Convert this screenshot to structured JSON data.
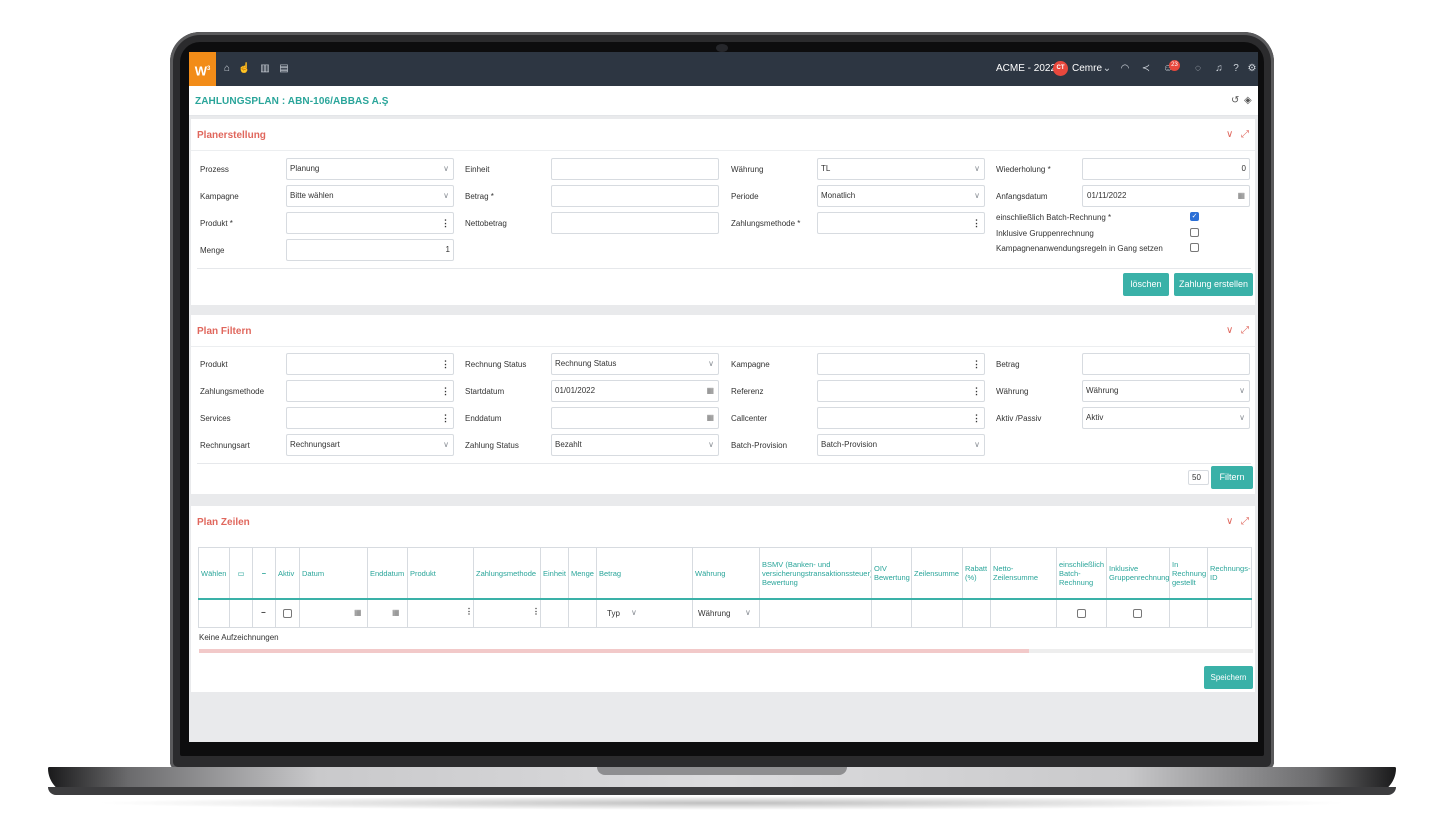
{
  "topbar": {
    "logo": "W",
    "logo_sup": "3",
    "company": "ACME - 2022",
    "avatar_initials": "CT",
    "username": "Cemre",
    "notification_count": "23",
    "icons": [
      "home-icon",
      "hand-icon",
      "chart-icon",
      "calendar-icon",
      "headset-icon",
      "share-icon",
      "bell-badge-icon",
      "chat-icon",
      "bell-icon",
      "help-icon",
      "gear-icon"
    ]
  },
  "title": {
    "text": "ZAHLUNGSPLAN : ABN-106/ABBAS A.Ş"
  },
  "planerstellung": {
    "title": "Planerstellung",
    "prozess_label": "Prozess",
    "prozess_value": "Planung",
    "kampagne_label": "Kampagne",
    "kampagne_value": "Bitte wählen",
    "produkt_label": "Produkt *",
    "produkt_value": "",
    "menge_label": "Menge",
    "menge_value": "1",
    "einheit_label": "Einheit",
    "einheit_value": "",
    "betrag_label": "Betrag *",
    "betrag_value": "",
    "nettobetrag_label": "Nettobetrag",
    "nettobetrag_value": "",
    "waehrung_label": "Währung",
    "waehrung_value": "TL",
    "periode_label": "Periode",
    "periode_value": "Monatlich",
    "zahlungsmethode_label": "Zahlungsmethode *",
    "zahlungsmethode_value": "",
    "wiederholung_label": "Wiederholung *",
    "wiederholung_value": "0",
    "anfangsdatum_label": "Anfangsdatum",
    "anfangsdatum_value": "01/11/2022",
    "batch_label": "einschließlich Batch-Rechnung *",
    "batch_checked": true,
    "gruppen_label": "Inklusive Gruppenrechnung",
    "gruppen_checked": false,
    "kampagnenregeln_label": "Kampagnenanwendungsregeln in Gang setzen",
    "kampagnenregeln_checked": false,
    "loeschen": "löschen",
    "erstellen": "Zahlung erstellen"
  },
  "planfilter": {
    "title": "Plan Filtern",
    "produkt_label": "Produkt",
    "zahlungsmethode_label": "Zahlungsmethode",
    "services_label": "Services",
    "rechnungsart_label": "Rechnungsart",
    "rechnungsart_value": "Rechnungsart",
    "rechnungstatus_label": "Rechnung Status",
    "rechnungstatus_value": "Rechnung Status",
    "startdatum_label": "Startdatum",
    "startdatum_value": "01/01/2022",
    "enddatum_label": "Enddatum",
    "enddatum_value": "",
    "zahlungstatus_label": "Zahlung Status",
    "zahlungstatus_value": "Bezahlt",
    "kampagne_label": "Kampagne",
    "referenz_label": "Referenz",
    "callcenter_label": "Callcenter",
    "batchprovision_label": "Batch-Provision",
    "batchprovision_value": "Batch-Provision",
    "betrag_label": "Betrag",
    "betrag_value": "",
    "waehrung_label": "Währung",
    "waehrung_value": "Währung",
    "aktiv_label": "Aktiv /Passiv",
    "aktiv_value": "Aktiv",
    "page_size": "50",
    "filter_button": "Filtern"
  },
  "planzeilen": {
    "title": "Plan Zeilen",
    "columns": [
      "Wählen",
      "",
      "",
      "Aktiv",
      "Datum",
      "Enddatum",
      "Produkt",
      "Zahlungsmethode",
      "Einheit",
      "Menge",
      "Betrag",
      "Währung",
      "BSMV (Banken- und versicherungstransaktionssteuer) Bewertung",
      "OIV Bewertung",
      "Zeilensumme",
      "Rabatt (%)",
      "Netto-Zeilensumme",
      "einschließlich Batch-Rechnung",
      "Inklusive Gruppenrechnung",
      "In Rechnung gestellt",
      "Rechnungs-ID"
    ],
    "typ_value": "Typ",
    "waehrung_value": "Währung",
    "empty_text": "Keine Aufzeichnungen",
    "save_button": "Speichern"
  }
}
